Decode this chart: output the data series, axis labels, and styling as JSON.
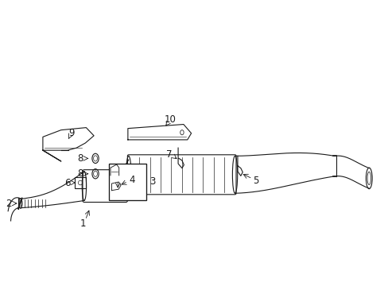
{
  "background_color": "#ffffff",
  "line_color": "#1a1a1a",
  "label_color": "#1a1a1a",
  "figsize": [
    4.89,
    3.6
  ],
  "dpi": 100
}
